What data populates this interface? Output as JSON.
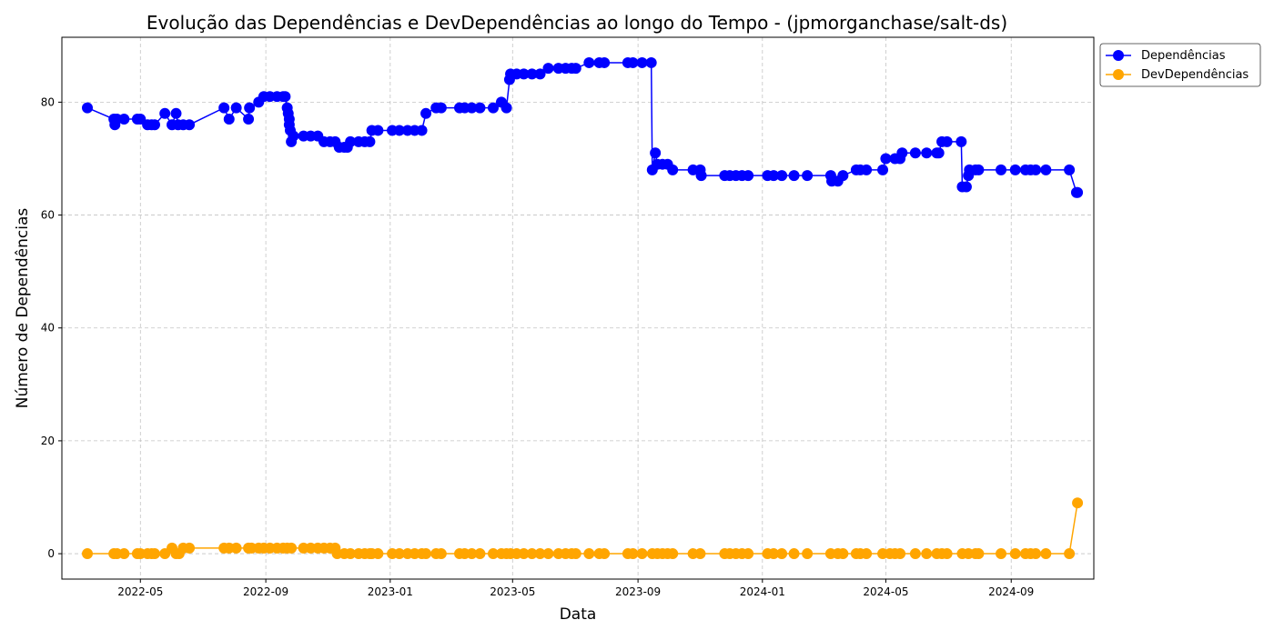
{
  "chart_data": {
    "type": "line",
    "title": "Evolução das Dependências e DevDependências ao longo do Tempo - (jpmorganchase/salt-ds)",
    "xlabel": "Data",
    "ylabel": "Número de Dependências",
    "x_tick_labels": [
      "2022-05",
      "2022-09",
      "2023-01",
      "2023-05",
      "2023-09",
      "2024-01",
      "2024-05",
      "2024-09"
    ],
    "y_ticks": [
      0,
      20,
      40,
      60,
      80
    ],
    "ylim": [
      -4.5,
      91.5
    ],
    "xlim": [
      "2022-02-13",
      "2024-11-21"
    ],
    "grid": true,
    "legend_position": "outside-top-right",
    "series": [
      {
        "name": "Dependências",
        "color": "#0000ff",
        "marker": "circle",
        "points": [
          [
            "2022-03-10",
            79
          ],
          [
            "2022-04-05",
            77
          ],
          [
            "2022-04-06",
            76
          ],
          [
            "2022-04-08",
            77
          ],
          [
            "2022-04-15",
            77
          ],
          [
            "2022-04-28",
            77
          ],
          [
            "2022-05-01",
            77
          ],
          [
            "2022-05-08",
            76
          ],
          [
            "2022-05-12",
            76
          ],
          [
            "2022-05-15",
            76
          ],
          [
            "2022-05-25",
            78
          ],
          [
            "2022-06-01",
            76
          ],
          [
            "2022-06-05",
            78
          ],
          [
            "2022-06-07",
            76
          ],
          [
            "2022-06-12",
            76
          ],
          [
            "2022-06-18",
            76
          ],
          [
            "2022-07-22",
            79
          ],
          [
            "2022-07-27",
            77
          ],
          [
            "2022-08-03",
            79
          ],
          [
            "2022-08-15",
            77
          ],
          [
            "2022-08-16",
            79
          ],
          [
            "2022-08-25",
            80
          ],
          [
            "2022-08-30",
            81
          ],
          [
            "2022-09-05",
            81
          ],
          [
            "2022-09-12",
            81
          ],
          [
            "2022-09-18",
            81
          ],
          [
            "2022-09-20",
            81
          ],
          [
            "2022-09-22",
            79
          ],
          [
            "2022-09-23",
            78
          ],
          [
            "2022-09-24",
            77
          ],
          [
            "2022-09-24",
            76
          ],
          [
            "2022-09-25",
            75
          ],
          [
            "2022-09-26",
            73
          ],
          [
            "2022-09-28",
            74
          ],
          [
            "2022-10-08",
            74
          ],
          [
            "2022-10-15",
            74
          ],
          [
            "2022-10-22",
            74
          ],
          [
            "2022-10-28",
            73
          ],
          [
            "2022-11-03",
            73
          ],
          [
            "2022-11-08",
            73
          ],
          [
            "2022-11-12",
            72
          ],
          [
            "2022-11-17",
            72
          ],
          [
            "2022-11-20",
            72
          ],
          [
            "2022-11-23",
            73
          ],
          [
            "2022-12-01",
            73
          ],
          [
            "2022-12-07",
            73
          ],
          [
            "2022-12-12",
            73
          ],
          [
            "2022-12-14",
            75
          ],
          [
            "2022-12-20",
            75
          ],
          [
            "2023-01-03",
            75
          ],
          [
            "2023-01-10",
            75
          ],
          [
            "2023-01-18",
            75
          ],
          [
            "2023-01-25",
            75
          ],
          [
            "2023-02-01",
            75
          ],
          [
            "2023-02-05",
            78
          ],
          [
            "2023-02-15",
            79
          ],
          [
            "2023-02-20",
            79
          ],
          [
            "2023-03-10",
            79
          ],
          [
            "2023-03-15",
            79
          ],
          [
            "2023-03-22",
            79
          ],
          [
            "2023-03-30",
            79
          ],
          [
            "2023-04-12",
            79
          ],
          [
            "2023-04-20",
            80
          ],
          [
            "2023-04-25",
            79
          ],
          [
            "2023-04-28",
            84
          ],
          [
            "2023-04-29",
            85
          ],
          [
            "2023-05-05",
            85
          ],
          [
            "2023-05-12",
            85
          ],
          [
            "2023-05-20",
            85
          ],
          [
            "2023-05-28",
            85
          ],
          [
            "2023-06-05",
            86
          ],
          [
            "2023-06-15",
            86
          ],
          [
            "2023-06-22",
            86
          ],
          [
            "2023-06-28",
            86
          ],
          [
            "2023-07-02",
            86
          ],
          [
            "2023-07-15",
            87
          ],
          [
            "2023-07-25",
            87
          ],
          [
            "2023-07-30",
            87
          ],
          [
            "2023-08-22",
            87
          ],
          [
            "2023-08-27",
            87
          ],
          [
            "2023-09-05",
            87
          ],
          [
            "2023-09-14",
            87
          ],
          [
            "2023-09-15",
            68
          ],
          [
            "2023-09-18",
            71
          ],
          [
            "2023-09-20",
            69
          ],
          [
            "2023-09-25",
            69
          ],
          [
            "2023-09-30",
            69
          ],
          [
            "2023-10-05",
            68
          ],
          [
            "2023-10-25",
            68
          ],
          [
            "2023-11-01",
            68
          ],
          [
            "2023-11-02",
            67
          ],
          [
            "2023-11-25",
            67
          ],
          [
            "2023-11-30",
            67
          ],
          [
            "2023-12-06",
            67
          ],
          [
            "2023-12-12",
            67
          ],
          [
            "2023-12-18",
            67
          ],
          [
            "2024-01-06",
            67
          ],
          [
            "2024-01-12",
            67
          ],
          [
            "2024-01-20",
            67
          ],
          [
            "2024-02-01",
            67
          ],
          [
            "2024-02-14",
            67
          ],
          [
            "2024-03-08",
            67
          ],
          [
            "2024-03-09",
            66
          ],
          [
            "2024-03-15",
            66
          ],
          [
            "2024-03-20",
            67
          ],
          [
            "2024-04-02",
            68
          ],
          [
            "2024-04-06",
            68
          ],
          [
            "2024-04-12",
            68
          ],
          [
            "2024-04-28",
            68
          ],
          [
            "2024-05-01",
            70
          ],
          [
            "2024-05-10",
            70
          ],
          [
            "2024-05-15",
            70
          ],
          [
            "2024-05-17",
            71
          ],
          [
            "2024-05-30",
            71
          ],
          [
            "2024-06-10",
            71
          ],
          [
            "2024-06-20",
            71
          ],
          [
            "2024-06-22",
            71
          ],
          [
            "2024-06-25",
            73
          ],
          [
            "2024-06-30",
            73
          ],
          [
            "2024-07-14",
            73
          ],
          [
            "2024-07-15",
            65
          ],
          [
            "2024-07-19",
            65
          ],
          [
            "2024-07-21",
            67
          ],
          [
            "2024-07-22",
            68
          ],
          [
            "2024-07-28",
            68
          ],
          [
            "2024-07-31",
            68
          ],
          [
            "2024-08-22",
            68
          ],
          [
            "2024-09-05",
            68
          ],
          [
            "2024-09-15",
            68
          ],
          [
            "2024-09-20",
            68
          ],
          [
            "2024-09-25",
            68
          ],
          [
            "2024-10-05",
            68
          ],
          [
            "2024-10-28",
            68
          ],
          [
            "2024-11-04",
            64
          ],
          [
            "2024-11-05",
            64
          ]
        ]
      },
      {
        "name": "DevDependências",
        "color": "#ffa500",
        "marker": "circle",
        "points": [
          [
            "2022-03-10",
            0
          ],
          [
            "2022-04-05",
            0
          ],
          [
            "2022-04-08",
            0
          ],
          [
            "2022-04-15",
            0
          ],
          [
            "2022-04-28",
            0
          ],
          [
            "2022-05-01",
            0
          ],
          [
            "2022-05-08",
            0
          ],
          [
            "2022-05-12",
            0
          ],
          [
            "2022-05-15",
            0
          ],
          [
            "2022-05-25",
            0
          ],
          [
            "2022-06-01",
            1
          ],
          [
            "2022-06-05",
            0
          ],
          [
            "2022-06-08",
            0
          ],
          [
            "2022-06-12",
            1
          ],
          [
            "2022-06-18",
            1
          ],
          [
            "2022-07-22",
            1
          ],
          [
            "2022-07-27",
            1
          ],
          [
            "2022-08-03",
            1
          ],
          [
            "2022-08-15",
            1
          ],
          [
            "2022-08-18",
            1
          ],
          [
            "2022-08-25",
            1
          ],
          [
            "2022-08-30",
            1
          ],
          [
            "2022-09-05",
            1
          ],
          [
            "2022-09-12",
            1
          ],
          [
            "2022-09-18",
            1
          ],
          [
            "2022-09-22",
            1
          ],
          [
            "2022-09-26",
            1
          ],
          [
            "2022-10-08",
            1
          ],
          [
            "2022-10-15",
            1
          ],
          [
            "2022-10-22",
            1
          ],
          [
            "2022-10-28",
            1
          ],
          [
            "2022-11-03",
            1
          ],
          [
            "2022-11-08",
            1
          ],
          [
            "2022-11-10",
            0
          ],
          [
            "2022-11-17",
            0
          ],
          [
            "2022-11-23",
            0
          ],
          [
            "2022-12-01",
            0
          ],
          [
            "2022-12-07",
            0
          ],
          [
            "2022-12-12",
            0
          ],
          [
            "2022-12-14",
            0
          ],
          [
            "2022-12-20",
            0
          ],
          [
            "2023-01-03",
            0
          ],
          [
            "2023-01-10",
            0
          ],
          [
            "2023-01-18",
            0
          ],
          [
            "2023-01-25",
            0
          ],
          [
            "2023-02-01",
            0
          ],
          [
            "2023-02-05",
            0
          ],
          [
            "2023-02-15",
            0
          ],
          [
            "2023-02-20",
            0
          ],
          [
            "2023-03-10",
            0
          ],
          [
            "2023-03-15",
            0
          ],
          [
            "2023-03-22",
            0
          ],
          [
            "2023-03-30",
            0
          ],
          [
            "2023-04-12",
            0
          ],
          [
            "2023-04-20",
            0
          ],
          [
            "2023-04-25",
            0
          ],
          [
            "2023-04-29",
            0
          ],
          [
            "2023-05-05",
            0
          ],
          [
            "2023-05-12",
            0
          ],
          [
            "2023-05-20",
            0
          ],
          [
            "2023-05-28",
            0
          ],
          [
            "2023-06-05",
            0
          ],
          [
            "2023-06-15",
            0
          ],
          [
            "2023-06-22",
            0
          ],
          [
            "2023-06-28",
            0
          ],
          [
            "2023-07-02",
            0
          ],
          [
            "2023-07-15",
            0
          ],
          [
            "2023-07-25",
            0
          ],
          [
            "2023-07-30",
            0
          ],
          [
            "2023-08-22",
            0
          ],
          [
            "2023-08-27",
            0
          ],
          [
            "2023-09-05",
            0
          ],
          [
            "2023-09-15",
            0
          ],
          [
            "2023-09-20",
            0
          ],
          [
            "2023-09-25",
            0
          ],
          [
            "2023-09-30",
            0
          ],
          [
            "2023-10-05",
            0
          ],
          [
            "2023-10-25",
            0
          ],
          [
            "2023-11-01",
            0
          ],
          [
            "2023-11-25",
            0
          ],
          [
            "2023-11-30",
            0
          ],
          [
            "2023-12-06",
            0
          ],
          [
            "2023-12-12",
            0
          ],
          [
            "2023-12-18",
            0
          ],
          [
            "2024-01-06",
            0
          ],
          [
            "2024-01-12",
            0
          ],
          [
            "2024-01-20",
            0
          ],
          [
            "2024-02-01",
            0
          ],
          [
            "2024-02-14",
            0
          ],
          [
            "2024-03-08",
            0
          ],
          [
            "2024-03-15",
            0
          ],
          [
            "2024-03-20",
            0
          ],
          [
            "2024-04-02",
            0
          ],
          [
            "2024-04-06",
            0
          ],
          [
            "2024-04-12",
            0
          ],
          [
            "2024-04-28",
            0
          ],
          [
            "2024-05-05",
            0
          ],
          [
            "2024-05-10",
            0
          ],
          [
            "2024-05-15",
            0
          ],
          [
            "2024-05-30",
            0
          ],
          [
            "2024-06-10",
            0
          ],
          [
            "2024-06-20",
            0
          ],
          [
            "2024-06-25",
            0
          ],
          [
            "2024-06-30",
            0
          ],
          [
            "2024-07-15",
            0
          ],
          [
            "2024-07-21",
            0
          ],
          [
            "2024-07-28",
            0
          ],
          [
            "2024-07-31",
            0
          ],
          [
            "2024-08-22",
            0
          ],
          [
            "2024-09-05",
            0
          ],
          [
            "2024-09-15",
            0
          ],
          [
            "2024-09-20",
            0
          ],
          [
            "2024-09-25",
            0
          ],
          [
            "2024-10-05",
            0
          ],
          [
            "2024-10-28",
            0
          ],
          [
            "2024-11-05",
            9
          ]
        ]
      }
    ]
  }
}
